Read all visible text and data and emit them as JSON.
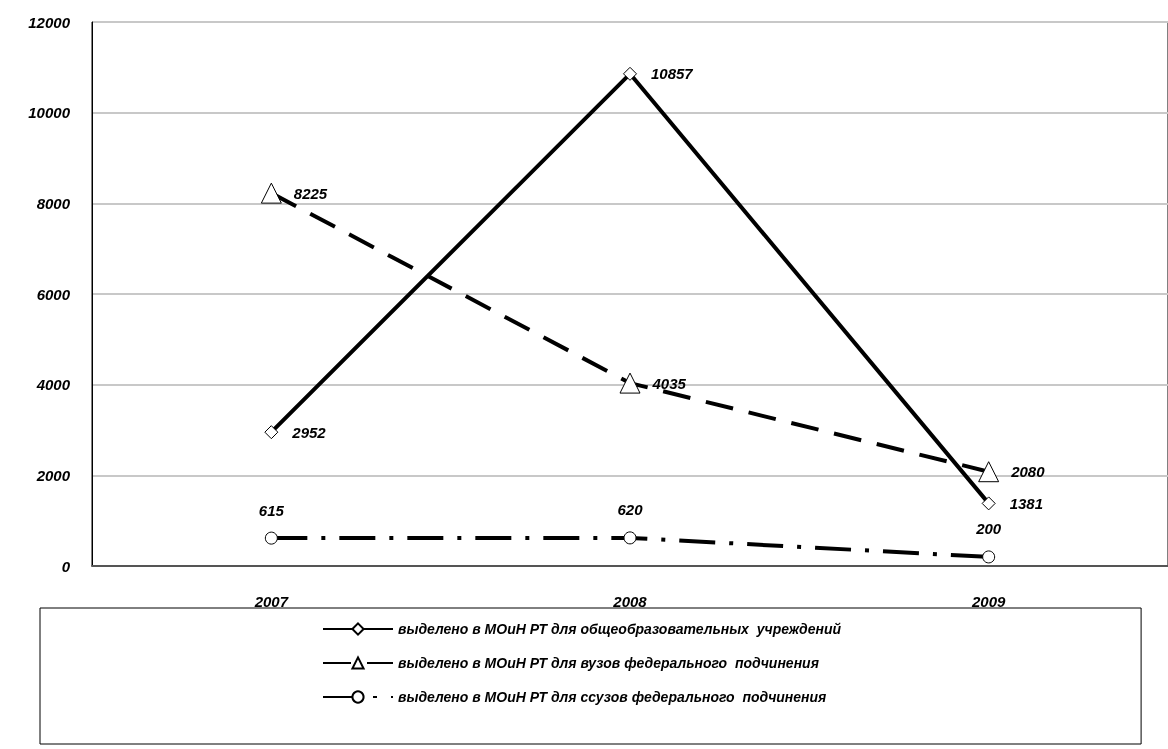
{
  "chart_data": {
    "type": "line",
    "categories": [
      "2007",
      "2008",
      "2009"
    ],
    "series": [
      {
        "name": "выделено в МОиН РТ для общеобразовательных  учреждений",
        "color": "#000000",
        "values": [
          2952,
          10857,
          1381
        ],
        "marker": "diamond",
        "line_style": "solid"
      },
      {
        "name": "выделено в МОиН РТ для вузов федерального  подчинения",
        "color": "#000000",
        "values": [
          8225,
          4035,
          2080
        ],
        "marker": "triangle",
        "line_style": "dashed"
      },
      {
        "name": "выделено в МОиН РТ для ссузов федерального  подчинения",
        "color": "#000000",
        "values": [
          615,
          620,
          200
        ],
        "marker": "circle",
        "line_style": "dashdot"
      }
    ],
    "ylim": [
      0,
      12000
    ],
    "yticks": [
      0,
      2000,
      4000,
      6000,
      8000,
      10000,
      12000
    ],
    "grid": "y",
    "legend": "bottom",
    "data_labels": true
  }
}
